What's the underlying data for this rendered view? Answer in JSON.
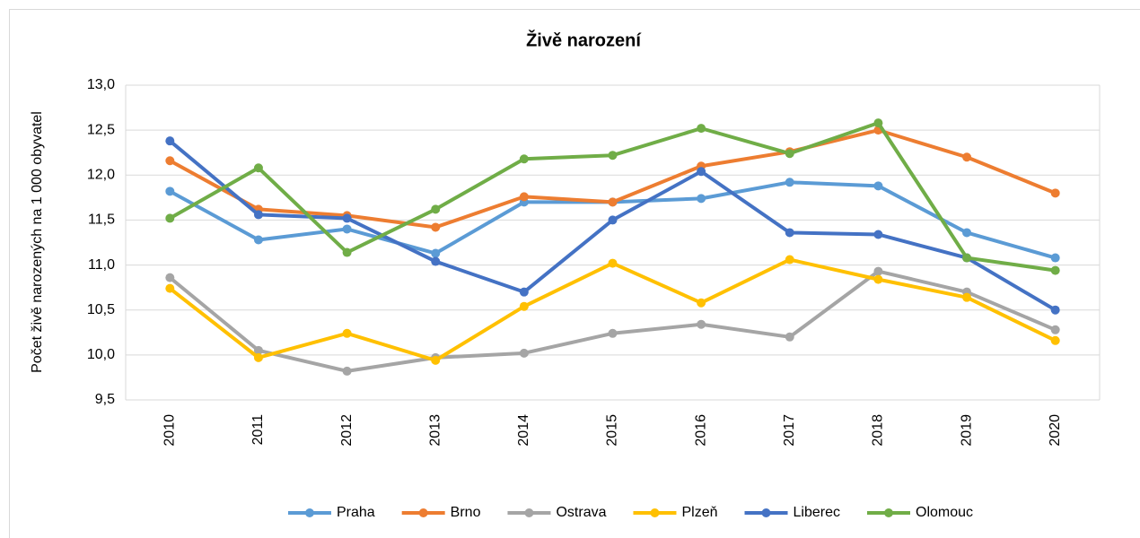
{
  "chart_data": {
    "type": "line",
    "title": "Živě narození",
    "y_label": "Počet živě narozených na 1 000 obyvatel",
    "categories": [
      "2010",
      "2011",
      "2012",
      "2013",
      "2014",
      "2015",
      "2016",
      "2017",
      "2018",
      "2019",
      "2020"
    ],
    "series": [
      {
        "name": "Praha",
        "color": "#5b9bd5",
        "values": [
          11.82,
          11.28,
          11.4,
          11.13,
          11.7,
          11.7,
          11.74,
          11.92,
          11.88,
          11.36,
          11.08
        ]
      },
      {
        "name": "Brno",
        "color": "#ed7d31",
        "values": [
          12.16,
          11.62,
          11.55,
          11.42,
          11.76,
          11.7,
          12.1,
          12.26,
          12.5,
          12.2,
          11.8
        ]
      },
      {
        "name": "Ostrava",
        "color": "#a5a5a5",
        "values": [
          10.86,
          10.05,
          9.82,
          9.97,
          10.02,
          10.24,
          10.34,
          10.2,
          10.93,
          10.7,
          10.28
        ]
      },
      {
        "name": "Plzeň",
        "color": "#ffc000",
        "values": [
          10.74,
          9.97,
          10.24,
          9.94,
          10.54,
          11.02,
          10.58,
          11.06,
          10.84,
          10.64,
          10.16
        ]
      },
      {
        "name": "Liberec",
        "color": "#4472c4",
        "values": [
          12.38,
          11.56,
          11.52,
          11.04,
          10.7,
          11.5,
          12.04,
          11.36,
          11.34,
          11.08,
          10.5
        ]
      },
      {
        "name": "Olomouc",
        "color": "#70ad47",
        "values": [
          11.52,
          12.08,
          11.14,
          11.62,
          12.18,
          12.22,
          12.52,
          12.24,
          12.58,
          11.08,
          10.94
        ]
      }
    ],
    "ylim": [
      9.5,
      13
    ],
    "yticks": [
      {
        "value": 9.5,
        "label": "9,5"
      },
      {
        "value": 10,
        "label": "10,0"
      },
      {
        "value": 10.5,
        "label": "10,5"
      },
      {
        "value": 11,
        "label": "11,0"
      },
      {
        "value": 11.5,
        "label": "11,5"
      },
      {
        "value": 12,
        "label": "12,0"
      },
      {
        "value": 12.5,
        "label": "12,5"
      },
      {
        "value": 13,
        "label": "13,0"
      }
    ],
    "grid": true,
    "legend": "bottom"
  }
}
